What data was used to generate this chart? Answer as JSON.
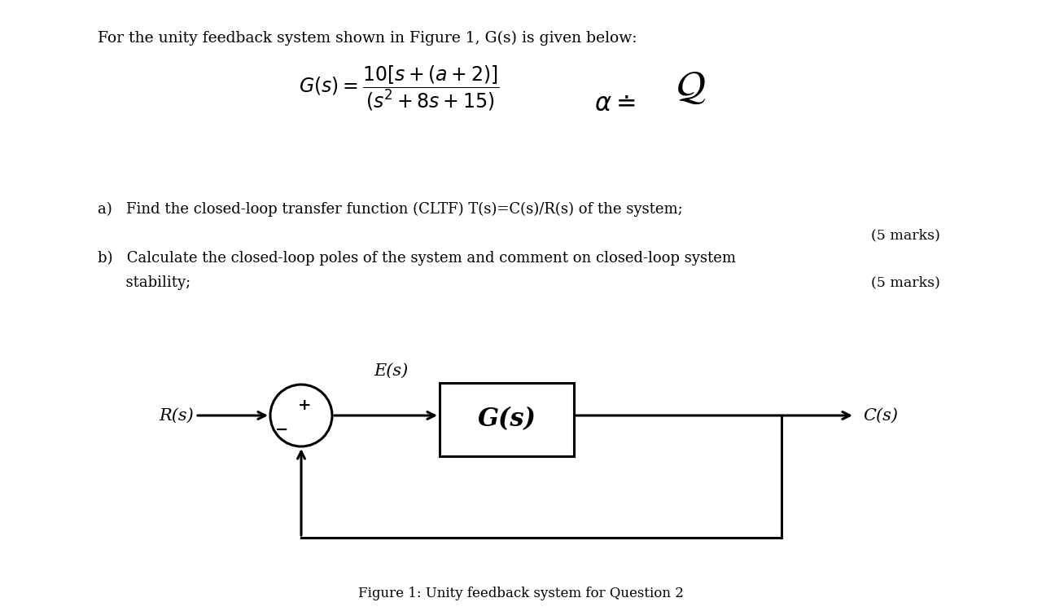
{
  "bg_color": "#ffffff",
  "text_color": "#000000",
  "line_color": "#000000",
  "title_text": "For the unity feedback system shown in Figure 1, G(s) is given below:",
  "part_a_text": "a)   Find the closed-loop transfer function (CLTF) T(s)=C(s)/R(s) of the system;",
  "part_a_marks": "(5 marks)",
  "part_b_line1": "b)   Calculate the closed-loop poles of the system and comment on closed-loop system",
  "part_b_line2": "      stability;",
  "part_b_marks": "(5 marks)",
  "fig_caption": "Figure 1: Unity feedback system for Question 2",
  "font_size_title": 13.5,
  "font_size_body": 13.0,
  "font_size_marks": 12.5
}
